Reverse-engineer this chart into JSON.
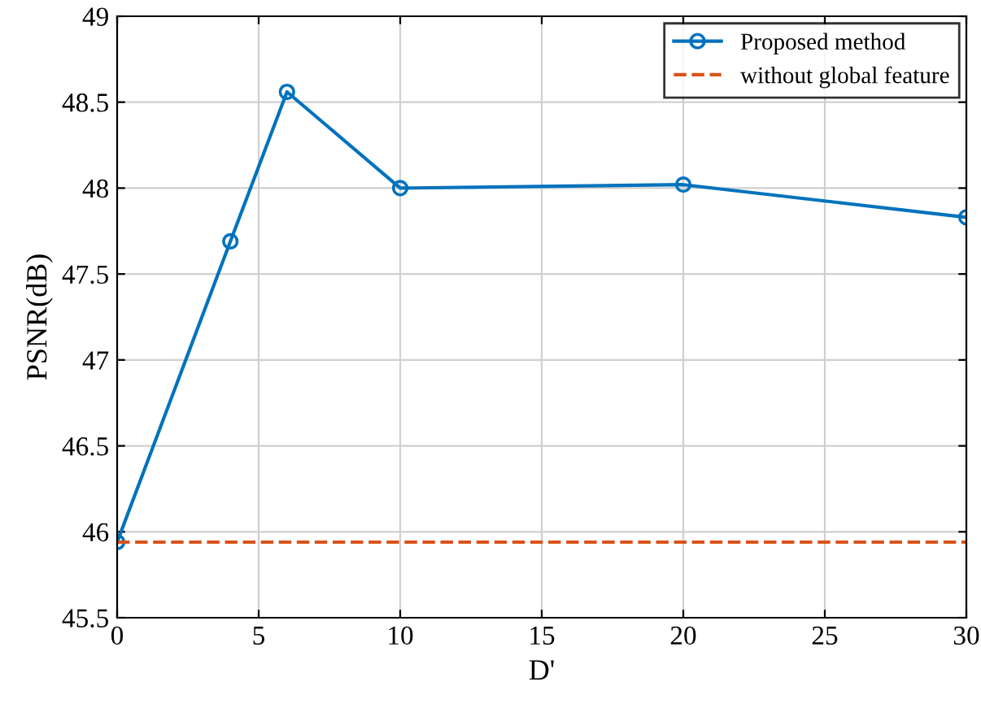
{
  "chart_data": {
    "type": "line",
    "xlabel": "D'",
    "ylabel": "PSNR(dB)",
    "xlim": [
      0,
      30
    ],
    "xticks": [
      0,
      5,
      10,
      15,
      20,
      25,
      30
    ],
    "ylim": [
      45.5,
      49
    ],
    "yticks": [
      45.5,
      46,
      46.5,
      47,
      47.5,
      48,
      48.5,
      49
    ],
    "grid": true,
    "legend": "top right",
    "series": [
      {
        "name": "Proposed method",
        "color": "#0072bd",
        "x": [
          0,
          4,
          6,
          10,
          20,
          30
        ],
        "values": [
          45.94,
          47.69,
          48.56,
          48.0,
          48.02,
          47.83
        ],
        "marker": "circle",
        "line_style": "solid"
      },
      {
        "name": "without global feature",
        "color": "#d95319",
        "x": [
          0,
          30
        ],
        "values": [
          45.94,
          45.94
        ],
        "marker": "none",
        "line_style": "dashed"
      }
    ]
  }
}
